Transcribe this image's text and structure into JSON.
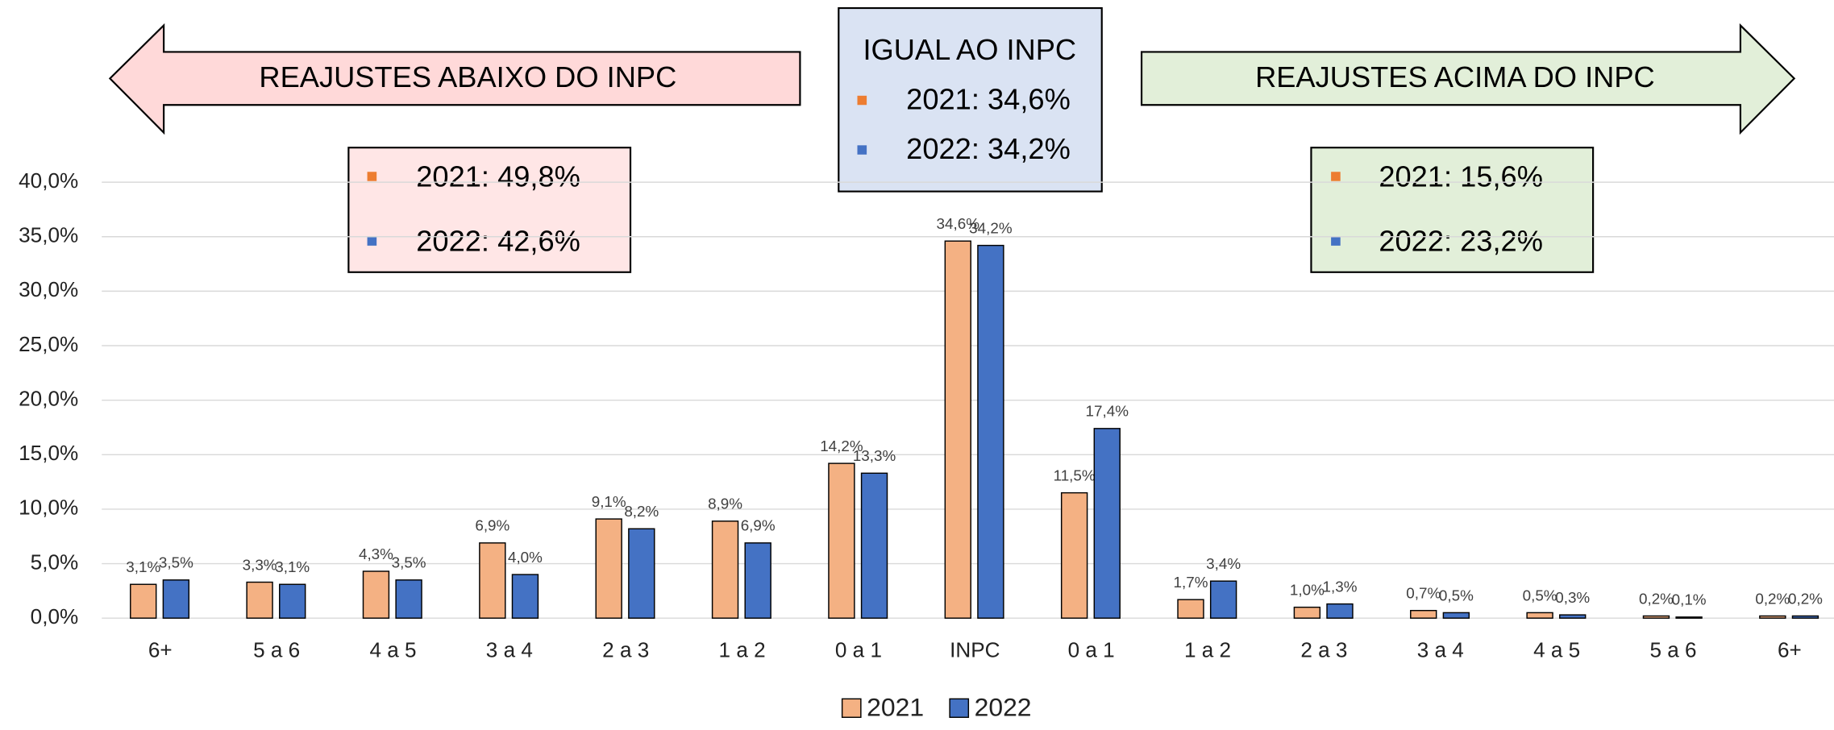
{
  "chart_data": {
    "type": "bar",
    "categories": [
      "6+",
      "5 a 6",
      "4 a 5",
      "3 a 4",
      "2 a 3",
      "1 a 2",
      "0 a 1",
      "INPC",
      "0 a 1",
      "1 a 2",
      "2 a 3",
      "3 a 4",
      "4 a 5",
      "5 a 6",
      "6+"
    ],
    "series": [
      {
        "name": "2021",
        "color": "#f4b183",
        "values": [
          3.1,
          3.3,
          4.3,
          6.9,
          9.1,
          8.9,
          14.2,
          34.6,
          11.5,
          1.7,
          1.0,
          0.7,
          0.5,
          0.2,
          0.2
        ],
        "value_labels": [
          "3,1%",
          "3,3%",
          "4,3%",
          "6,9%",
          "9,1%",
          "8,9%",
          "14,2%",
          "34,6%",
          "11,5%",
          "1,7%",
          "1,0%",
          "0,7%",
          "0,5%",
          "0,2%",
          "0,2%"
        ]
      },
      {
        "name": "2022",
        "color": "#4472c4",
        "values": [
          3.5,
          3.1,
          3.5,
          4.0,
          8.2,
          6.9,
          13.3,
          34.2,
          17.4,
          3.4,
          1.3,
          0.5,
          0.3,
          0.1,
          0.2
        ],
        "value_labels": [
          "3,5%",
          "3,1%",
          "3,5%",
          "4,0%",
          "8,2%",
          "6,9%",
          "13,3%",
          "34,2%",
          "17,4%",
          "3,4%",
          "1,3%",
          "0,5%",
          "0,3%",
          "0,1%",
          "0,2%"
        ]
      }
    ],
    "ylim": [
      0,
      40
    ],
    "yticks": [
      {
        "value": 0,
        "label": "0,0%"
      },
      {
        "value": 5,
        "label": "5,0%"
      },
      {
        "value": 10,
        "label": "10,0%"
      },
      {
        "value": 15,
        "label": "15,0%"
      },
      {
        "value": 20,
        "label": "20,0%"
      },
      {
        "value": 25,
        "label": "25,0%"
      },
      {
        "value": 30,
        "label": "30,0%"
      },
      {
        "value": 35,
        "label": "35,0%"
      },
      {
        "value": 40,
        "label": "40,0%"
      }
    ],
    "grid": true,
    "legend": "bottom",
    "annotations": {
      "below": {
        "title": "REAJUSTES ABAIXO DO INPC",
        "lines": [
          "2021: 49,8%",
          "2022: 42,6%"
        ]
      },
      "equal": {
        "title": "IGUAL AO INPC",
        "lines": [
          "2021: 34,6%",
          "2022: 34,2%"
        ]
      },
      "above": {
        "title": "REAJUSTES ACIMA DO INPC",
        "lines": [
          "2021: 15,6%",
          "2022: 23,2%"
        ]
      }
    }
  }
}
